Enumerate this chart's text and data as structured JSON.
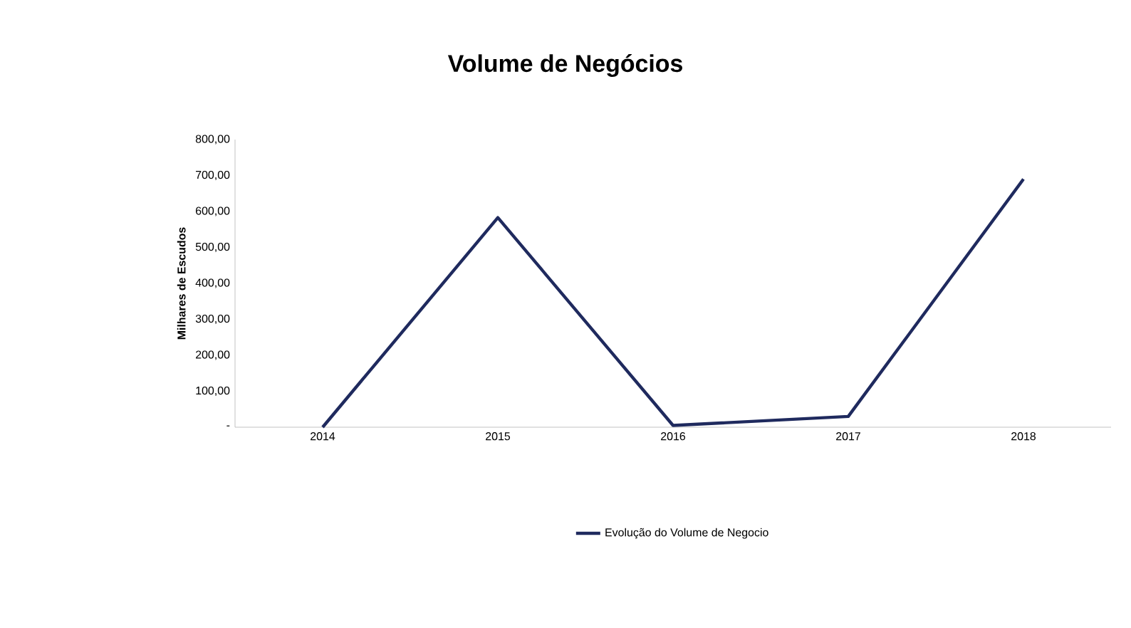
{
  "chart_data": {
    "type": "line",
    "title": "Volume de Negócios",
    "ylabel": "Milhares de Escudos",
    "categories": [
      "2014",
      "2015",
      "2016",
      "2017",
      "2018"
    ],
    "series": [
      {
        "name": "Evolução do Volume de Negocio",
        "color": "#1f2a5e",
        "values": [
          0,
          583,
          5,
          30,
          690
        ]
      }
    ],
    "ylim": [
      0,
      800
    ],
    "yticks": [
      {
        "value": 0,
        "label": "-"
      },
      {
        "value": 100,
        "label": "100,00"
      },
      {
        "value": 200,
        "label": "200,00"
      },
      {
        "value": 300,
        "label": "300,00"
      },
      {
        "value": 400,
        "label": "400,00"
      },
      {
        "value": 500,
        "label": "500,00"
      },
      {
        "value": 600,
        "label": "600,00"
      },
      {
        "value": 700,
        "label": "700,00"
      },
      {
        "value": 800,
        "label": "800,00"
      }
    ],
    "legend": "bottom",
    "marker": "none",
    "line_style": "solid"
  }
}
